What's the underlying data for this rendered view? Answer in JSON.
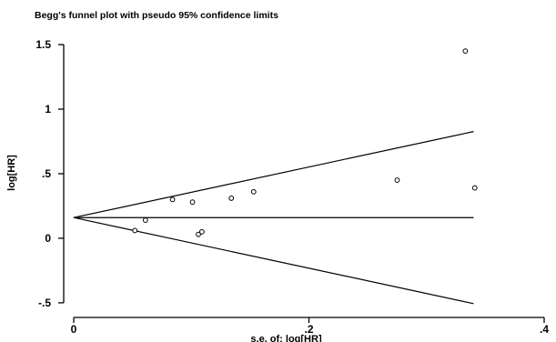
{
  "chart_data": {
    "type": "scatter",
    "title": "Begg's funnel plot with pseudo 95% confidence limits",
    "xlabel": "s.e. of: log[HR]",
    "ylabel": "log[HR]",
    "xlim": [
      0,
      0.4
    ],
    "ylim": [
      -0.55,
      1.62
    ],
    "x_ticks": [
      0,
      0.2,
      0.4
    ],
    "x_tick_labels": [
      "0",
      ".2",
      ".4"
    ],
    "y_ticks": [
      -0.5,
      0,
      0.5,
      1,
      1.5
    ],
    "y_tick_labels": [
      "-.5",
      "0",
      ".5",
      "1",
      "1.5"
    ],
    "grid": false,
    "pooled_estimate": 0.16,
    "limit_se_max": 0.34,
    "points": [
      {
        "x": 0.052,
        "y": 0.06
      },
      {
        "x": 0.061,
        "y": 0.14
      },
      {
        "x": 0.084,
        "y": 0.3
      },
      {
        "x": 0.101,
        "y": 0.28
      },
      {
        "x": 0.106,
        "y": 0.03
      },
      {
        "x": 0.109,
        "y": 0.05
      },
      {
        "x": 0.134,
        "y": 0.31
      },
      {
        "x": 0.153,
        "y": 0.36
      },
      {
        "x": 0.275,
        "y": 0.45
      },
      {
        "x": 0.333,
        "y": 1.45
      },
      {
        "x": 0.341,
        "y": 0.39
      }
    ]
  }
}
